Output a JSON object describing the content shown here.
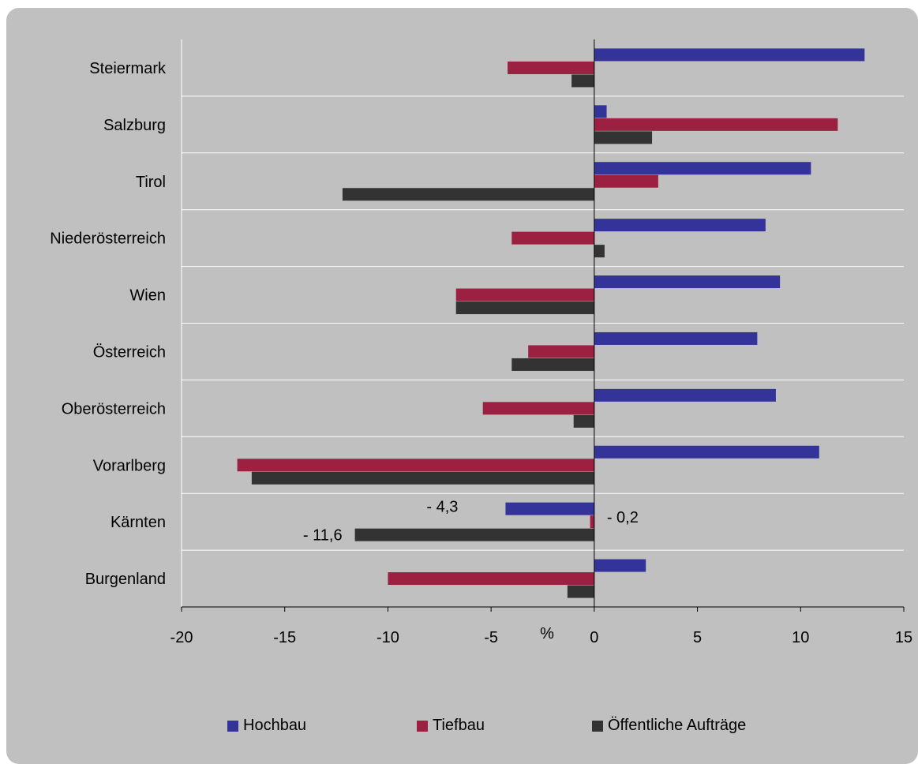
{
  "chart_data": {
    "type": "bar",
    "orientation": "horizontal",
    "categories": [
      "Steiermark",
      "Salzburg",
      "Tirol",
      "Niederösterreich",
      "Wien",
      "Österreich",
      "Oberösterreich",
      "Vorarlberg",
      "Kärnten",
      "Burgenland"
    ],
    "series": [
      {
        "name": "Hochbau",
        "color": "#33339a",
        "values": [
          13.1,
          0.6,
          10.5,
          8.3,
          9.0,
          7.9,
          8.8,
          10.9,
          -4.3,
          2.5
        ]
      },
      {
        "name": "Tiefbau",
        "color": "#9b2041",
        "values": [
          -4.2,
          11.8,
          3.1,
          -4.0,
          -6.7,
          -3.2,
          -5.4,
          -17.3,
          -0.2,
          -10.0
        ]
      },
      {
        "name": "Öffentliche Aufträge",
        "color": "#333333",
        "values": [
          -1.1,
          2.8,
          -12.2,
          0.5,
          -6.7,
          -4.0,
          -1.0,
          -16.6,
          -11.6,
          -1.3
        ]
      }
    ],
    "data_labels": [
      {
        "category": "Kärnten",
        "series": "Hochbau",
        "text": "- 4,3"
      },
      {
        "category": "Kärnten",
        "series": "Tiefbau",
        "text": "- 0,2"
      },
      {
        "category": "Kärnten",
        "series": "Öffentliche Aufträge",
        "text": "- 11,6"
      }
    ],
    "xlabel": "%",
    "xlim": [
      -20,
      15
    ],
    "xticks": [
      "-20",
      "-15",
      "-10",
      "-5",
      "0",
      "5",
      "10",
      "15"
    ],
    "grid": "horizontal category separators",
    "legend_position": "bottom",
    "background": "#c0c0c0",
    "plot_background": "#c0c0c0"
  }
}
